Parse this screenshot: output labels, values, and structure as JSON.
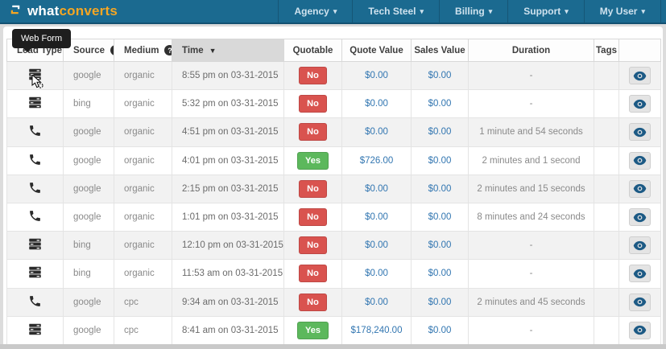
{
  "brand": {
    "prefix": "what",
    "suffix": "converts"
  },
  "navbar": {
    "items": [
      {
        "label": "Agency"
      },
      {
        "label": "Tech Steel"
      },
      {
        "label": "Billing"
      },
      {
        "label": "Support"
      },
      {
        "label": "My User"
      }
    ],
    "caret": "▾"
  },
  "tooltip": {
    "text": "Web Form"
  },
  "table": {
    "columns": [
      "Lead Type",
      "Source",
      "Medium",
      "Time",
      "Quotable",
      "Quote Value",
      "Sales Value",
      "Duration",
      "Tags",
      ""
    ],
    "sort": {
      "column": "Time",
      "direction": "desc",
      "icon": "▼"
    },
    "help_glyph": "?",
    "rows": [
      {
        "lead_type": "web-form",
        "source": "google",
        "medium": "organic",
        "time": "8:55 pm on 03-31-2015",
        "quotable": "No",
        "quote_value": "$0.00",
        "sales_value": "$0.00",
        "duration": "-",
        "tags": ""
      },
      {
        "lead_type": "web-form",
        "source": "bing",
        "medium": "organic",
        "time": "5:32 pm on 03-31-2015",
        "quotable": "No",
        "quote_value": "$0.00",
        "sales_value": "$0.00",
        "duration": "-",
        "tags": ""
      },
      {
        "lead_type": "phone",
        "source": "google",
        "medium": "organic",
        "time": "4:51 pm on 03-31-2015",
        "quotable": "No",
        "quote_value": "$0.00",
        "sales_value": "$0.00",
        "duration": "1 minute and 54 seconds",
        "tags": ""
      },
      {
        "lead_type": "phone",
        "source": "google",
        "medium": "organic",
        "time": "4:01 pm on 03-31-2015",
        "quotable": "Yes",
        "quote_value": "$726.00",
        "sales_value": "$0.00",
        "duration": "2 minutes and 1 second",
        "tags": ""
      },
      {
        "lead_type": "phone",
        "source": "google",
        "medium": "organic",
        "time": "2:15 pm on 03-31-2015",
        "quotable": "No",
        "quote_value": "$0.00",
        "sales_value": "$0.00",
        "duration": "2 minutes and 15 seconds",
        "tags": ""
      },
      {
        "lead_type": "phone",
        "source": "google",
        "medium": "organic",
        "time": "1:01 pm on 03-31-2015",
        "quotable": "No",
        "quote_value": "$0.00",
        "sales_value": "$0.00",
        "duration": "8 minutes and 24 seconds",
        "tags": ""
      },
      {
        "lead_type": "web-form",
        "source": "bing",
        "medium": "organic",
        "time": "12:10 pm on 03-31-2015",
        "quotable": "No",
        "quote_value": "$0.00",
        "sales_value": "$0.00",
        "duration": "-",
        "tags": ""
      },
      {
        "lead_type": "web-form",
        "source": "bing",
        "medium": "organic",
        "time": "11:53 am on 03-31-2015",
        "quotable": "No",
        "quote_value": "$0.00",
        "sales_value": "$0.00",
        "duration": "-",
        "tags": ""
      },
      {
        "lead_type": "phone",
        "source": "google",
        "medium": "cpc",
        "time": "9:34 am on 03-31-2015",
        "quotable": "No",
        "quote_value": "$0.00",
        "sales_value": "$0.00",
        "duration": "2 minutes and 45 seconds",
        "tags": ""
      },
      {
        "lead_type": "web-form",
        "source": "google",
        "medium": "cpc",
        "time": "8:41 am on 03-31-2015",
        "quotable": "Yes",
        "quote_value": "$178,240.00",
        "sales_value": "$0.00",
        "duration": "-",
        "tags": ""
      }
    ]
  },
  "colors": {
    "navbar_bg": "#1b6a90",
    "brand_orange": "#f5a623",
    "quotable_no": "#d9534f",
    "quotable_yes": "#5cb85c",
    "value_link": "#3276b1",
    "tooltip_bg": "#1e1e1e",
    "sorted_header_bg": "#d9d9d9"
  }
}
